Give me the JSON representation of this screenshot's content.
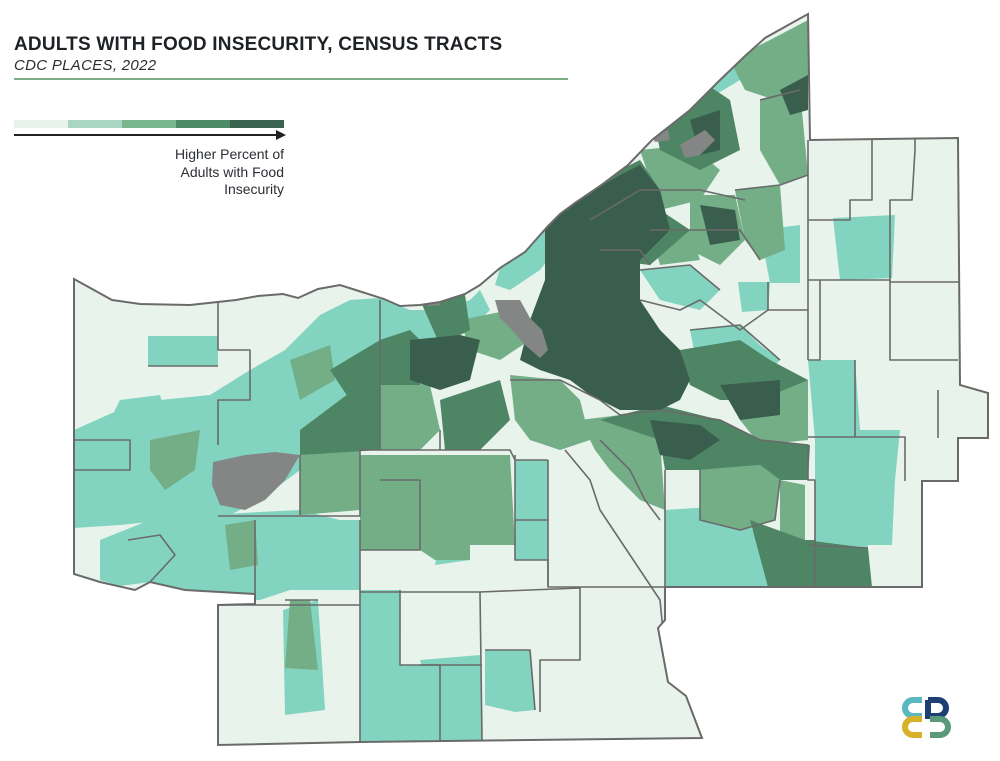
{
  "title": "ADULTS WITH FOOD INSECURITY, CENSUS TRACTS",
  "subtitle": "CDC PLACES, 2022",
  "legend": {
    "label": "Higher Percent of\nAdults with Food\nInsecurity",
    "colors": [
      "#e8f3ec",
      "#a9d6c2",
      "#7ab68d",
      "#4e8a66",
      "#3a6251"
    ]
  },
  "colors": {
    "class1": "#e8f3ec",
    "class2": "#82d4c0",
    "class3": "#74ae87",
    "class4": "#4e8564",
    "class5": "#3a5e4d",
    "no_data": "#848686",
    "boundary": "#6a6a6a",
    "title_rule": "#7cae86",
    "logo_teal": "#5bb7c0",
    "logo_yellow": "#d8b12a",
    "logo_navy": "#1f3f74",
    "logo_green": "#5a9a78"
  },
  "icons": [
    "arrow-right-icon",
    "organization-logo"
  ]
}
